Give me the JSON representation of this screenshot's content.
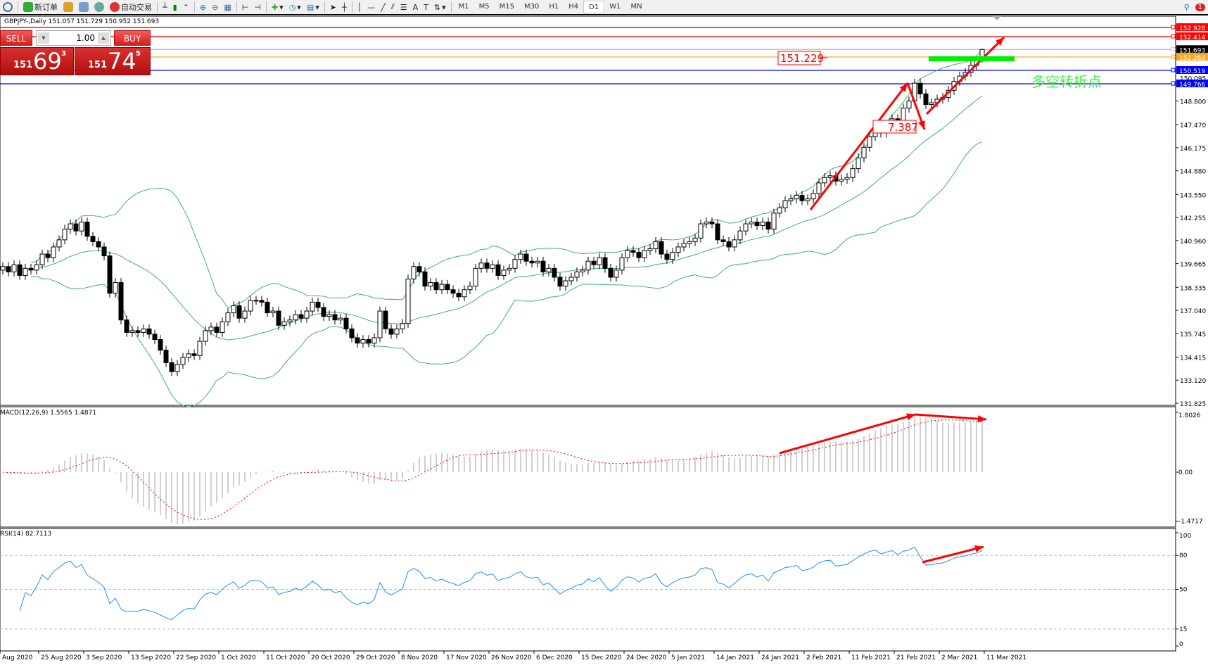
{
  "toolbar": {
    "new_order": "新订单",
    "auto_trading": "自动交易",
    "timeframes": [
      "M1",
      "M5",
      "M15",
      "M30",
      "H1",
      "H4",
      "D1",
      "W1",
      "MN"
    ],
    "active_timeframe": "D1",
    "notification_count": "1"
  },
  "chart_title": "GBPJPY-,Daily  151.057 151.729 150.952 151.693",
  "trade_panel": {
    "sell": "SELL",
    "buy": "BUY",
    "lot": "1.00",
    "bid_small": "151",
    "bid_big": "69",
    "bid_tiny": "3",
    "ask_small": "151",
    "ask_big": "74",
    "ask_tiny": "5"
  },
  "colors": {
    "bull": "#ffffff",
    "bear": "#000000",
    "bands": "#3cb371",
    "macd_hist": "#c0c0c0",
    "macd_signal": "#ff0000",
    "rsi": "#1e90ff",
    "annotation": "#ff0000",
    "green_mark": "#00ee00"
  },
  "chart_data": [
    {
      "type": "candlestick",
      "symbol": "GBPJPY-",
      "timeframe": "Daily",
      "last_ohlc": [
        151.057,
        151.729,
        150.952,
        151.693
      ],
      "close": [
        139.5,
        139.2,
        139.6,
        139.0,
        139.4,
        139.3,
        139.6,
        140.2,
        140.0,
        140.6,
        141.0,
        141.6,
        141.9,
        141.5,
        142.0,
        141.2,
        140.9,
        140.6,
        140.1,
        138.0,
        138.6,
        136.5,
        135.8,
        135.9,
        135.8,
        136.0,
        135.7,
        135.4,
        134.8,
        134.1,
        133.6,
        134.0,
        134.4,
        134.6,
        134.5,
        135.3,
        135.9,
        136.1,
        135.8,
        136.4,
        136.9,
        137.3,
        136.6,
        137.0,
        137.6,
        137.6,
        137.5,
        136.9,
        137.0,
        136.2,
        136.4,
        136.5,
        136.8,
        136.6,
        137.0,
        137.5,
        137.2,
        136.7,
        136.8,
        136.5,
        136.6,
        136.0,
        135.5,
        135.2,
        135.4,
        135.2,
        135.5,
        137.0,
        136.0,
        135.7,
        136.0,
        136.3,
        138.8,
        139.5,
        139.2,
        138.4,
        138.6,
        138.2,
        138.5,
        138.2,
        138.0,
        137.8,
        138.2,
        138.4,
        139.4,
        139.7,
        139.4,
        139.6,
        139.0,
        139.3,
        139.4,
        139.9,
        140.2,
        139.8,
        139.7,
        139.8,
        139.2,
        139.4,
        138.9,
        138.4,
        138.7,
        138.9,
        139.2,
        139.3,
        139.8,
        139.6,
        140.0,
        139.4,
        138.9,
        139.3,
        140.0,
        140.4,
        140.3,
        140.0,
        140.4,
        140.5,
        140.9,
        140.2,
        139.9,
        140.3,
        140.6,
        140.8,
        140.9,
        141.1,
        141.9,
        142.0,
        141.9,
        141.0,
        140.9,
        140.6,
        141.0,
        141.5,
        141.9,
        142.0,
        141.8,
        142.0,
        141.6,
        142.5,
        142.8,
        143.2,
        143.3,
        143.5,
        143.2,
        143.3,
        143.6,
        144.2,
        144.5,
        144.6,
        144.3,
        144.4,
        144.5,
        145.0,
        145.6,
        146.2,
        146.8,
        147.2,
        147.0,
        147.4,
        147.8,
        147.6,
        148.4,
        148.8,
        149.8,
        149.2,
        148.6,
        148.7,
        148.9,
        149.0,
        149.4,
        149.9,
        150.2,
        150.4,
        150.8,
        151.057,
        151.693
      ],
      "indicators": [
        "Bollinger Bands"
      ],
      "price_ticks": [
        "148.800",
        "147.470",
        "146.175",
        "144.880",
        "143.550",
        "142.255",
        "140.960",
        "139.665",
        "138.335",
        "137.040",
        "135.745",
        "134.415",
        "133.120",
        "131.825"
      ],
      "extra_tick": "150.095",
      "ylim": [
        131.825,
        153.1
      ],
      "hlines": [
        {
          "price": 152.928,
          "label": "152.928",
          "color": "#ff0000"
        },
        {
          "price": 152.414,
          "label": "152.414",
          "color": "#ff0000"
        },
        {
          "price": 151.693,
          "label": "151.693",
          "color": "#c0c0c0",
          "label_bg": "#000000"
        },
        {
          "price": 151.269,
          "label": "151.269",
          "color": "#f5a623"
        },
        {
          "price": 150.519,
          "label": "150.519",
          "color": "#0000ff"
        },
        {
          "price": 149.766,
          "label": "149.766",
          "color": "#0000ff"
        }
      ],
      "price_labels": [
        {
          "text": "151.229"
        },
        {
          "text": "7.387"
        }
      ],
      "annotation_text": "多空转折点",
      "x_ticks": [
        "Aug 2020",
        "25 Aug 2020",
        "3 Sep 2020",
        "13 Sep 2020",
        "22 Sep 2020",
        "1 Oct 2020",
        "11 Oct 2020",
        "20 Oct 2020",
        "29 Oct 2020",
        "8 Nov 2020",
        "17 Nov 2020",
        "26 Nov 2020",
        "6 Dec 2020",
        "15 Dec 2020",
        "24 Dec 2020",
        "5 Jan 2021",
        "14 Jan 2021",
        "24 Jan 2021",
        "2 Feb 2021",
        "11 Feb 2021",
        "21 Feb 2021",
        "2 Mar 2021",
        "11 Mar 2021"
      ]
    },
    {
      "type": "bar",
      "name": "MACD(12,26,9) 1.5565 1.4871",
      "ylim": [
        -1.4717,
        1.8026
      ],
      "ticks": [
        "1.8026",
        "0.00",
        "-1.4717"
      ]
    },
    {
      "type": "line",
      "name": "RSI(14) 82.7113",
      "ylim": [
        0,
        100
      ],
      "ticks": [
        "100",
        "80",
        "50",
        "15",
        "0"
      ],
      "levels": [
        80,
        50,
        15
      ]
    }
  ]
}
